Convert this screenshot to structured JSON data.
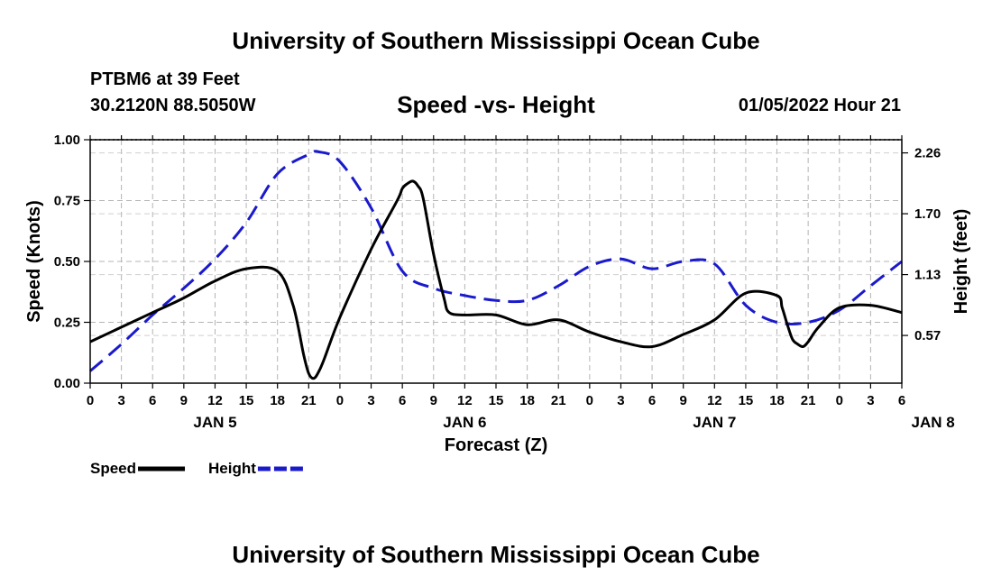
{
  "header": {
    "title": "University of Southern Mississippi Ocean Cube",
    "station": "PTBM6 at 39 Feet",
    "coords": "30.2120N  88.5050W",
    "subtitle": "Speed -vs- Height",
    "datetime": "01/05/2022 Hour 21"
  },
  "footer": {
    "title": "University of Southern Mississippi Ocean Cube"
  },
  "colors": {
    "speed": "#000000",
    "height": "#1a1acc",
    "grid": "#b4b4b4"
  },
  "chart_data": {
    "type": "line",
    "xlabel": "Forecast (Z)",
    "ylabel": "Speed (Knots)",
    "y2label": "Height (feet)",
    "x_ticks": [
      "0",
      "3",
      "6",
      "9",
      "12",
      "15",
      "18",
      "21",
      "0",
      "3",
      "6",
      "9",
      "12",
      "15",
      "18",
      "21",
      "0",
      "3",
      "6",
      "9",
      "12",
      "15",
      "18",
      "21",
      "0",
      "3",
      "6"
    ],
    "date_labels": [
      {
        "label": "JAN 5",
        "hour": 12
      },
      {
        "label": "JAN 6",
        "hour": 36
      },
      {
        "label": "JAN 7",
        "hour": 60
      },
      {
        "label": "JAN 8",
        "hour": 81
      }
    ],
    "xlim": [
      0,
      78
    ],
    "ylim": [
      0,
      1
    ],
    "y_ticks": [
      "0.00",
      "0.25",
      "0.50",
      "0.75",
      "1.00"
    ],
    "y2_ticks": [
      {
        "label": "0.57",
        "value": 0.196
      },
      {
        "label": "1.13",
        "value": 0.446
      },
      {
        "label": "1.70",
        "value": 0.696
      },
      {
        "label": "2.26",
        "value": 0.946
      }
    ],
    "legend": [
      {
        "name": "Speed",
        "series": "speed"
      },
      {
        "name": "Height",
        "series": "height"
      }
    ],
    "series": [
      {
        "name": "Speed",
        "key": "speed",
        "hours": [
          0,
          3,
          6,
          9,
          12,
          15,
          18,
          19.5,
          20.5,
          21,
          21.5,
          22,
          22.5,
          24,
          27,
          29.5,
          30,
          30.5,
          31,
          31.5,
          32,
          33,
          34,
          34.5,
          36,
          39,
          42,
          45,
          48,
          51,
          54,
          57,
          60,
          63,
          66,
          66.5,
          67,
          67.5,
          68,
          68.5,
          69,
          70,
          72,
          75,
          78
        ],
        "values": [
          0.17,
          0.23,
          0.29,
          0.35,
          0.42,
          0.47,
          0.46,
          0.32,
          0.12,
          0.04,
          0.02,
          0.05,
          0.1,
          0.27,
          0.55,
          0.75,
          0.8,
          0.82,
          0.83,
          0.81,
          0.76,
          0.53,
          0.35,
          0.29,
          0.28,
          0.28,
          0.24,
          0.26,
          0.21,
          0.17,
          0.15,
          0.2,
          0.26,
          0.37,
          0.36,
          0.31,
          0.24,
          0.18,
          0.16,
          0.15,
          0.17,
          0.23,
          0.31,
          0.32,
          0.29
        ]
      },
      {
        "name": "Height",
        "key": "height",
        "hours": [
          0,
          3,
          6,
          9,
          12,
          15,
          18,
          21,
          22,
          24,
          27,
          30,
          33,
          36,
          39,
          42,
          45,
          48,
          51,
          54,
          57,
          60,
          63,
          66,
          69,
          72,
          75,
          78
        ],
        "values": [
          0.05,
          0.16,
          0.28,
          0.39,
          0.51,
          0.66,
          0.86,
          0.94,
          0.95,
          0.91,
          0.72,
          0.46,
          0.39,
          0.36,
          0.34,
          0.34,
          0.4,
          0.48,
          0.51,
          0.47,
          0.5,
          0.49,
          0.32,
          0.25,
          0.25,
          0.3,
          0.4,
          0.5
        ]
      }
    ]
  }
}
